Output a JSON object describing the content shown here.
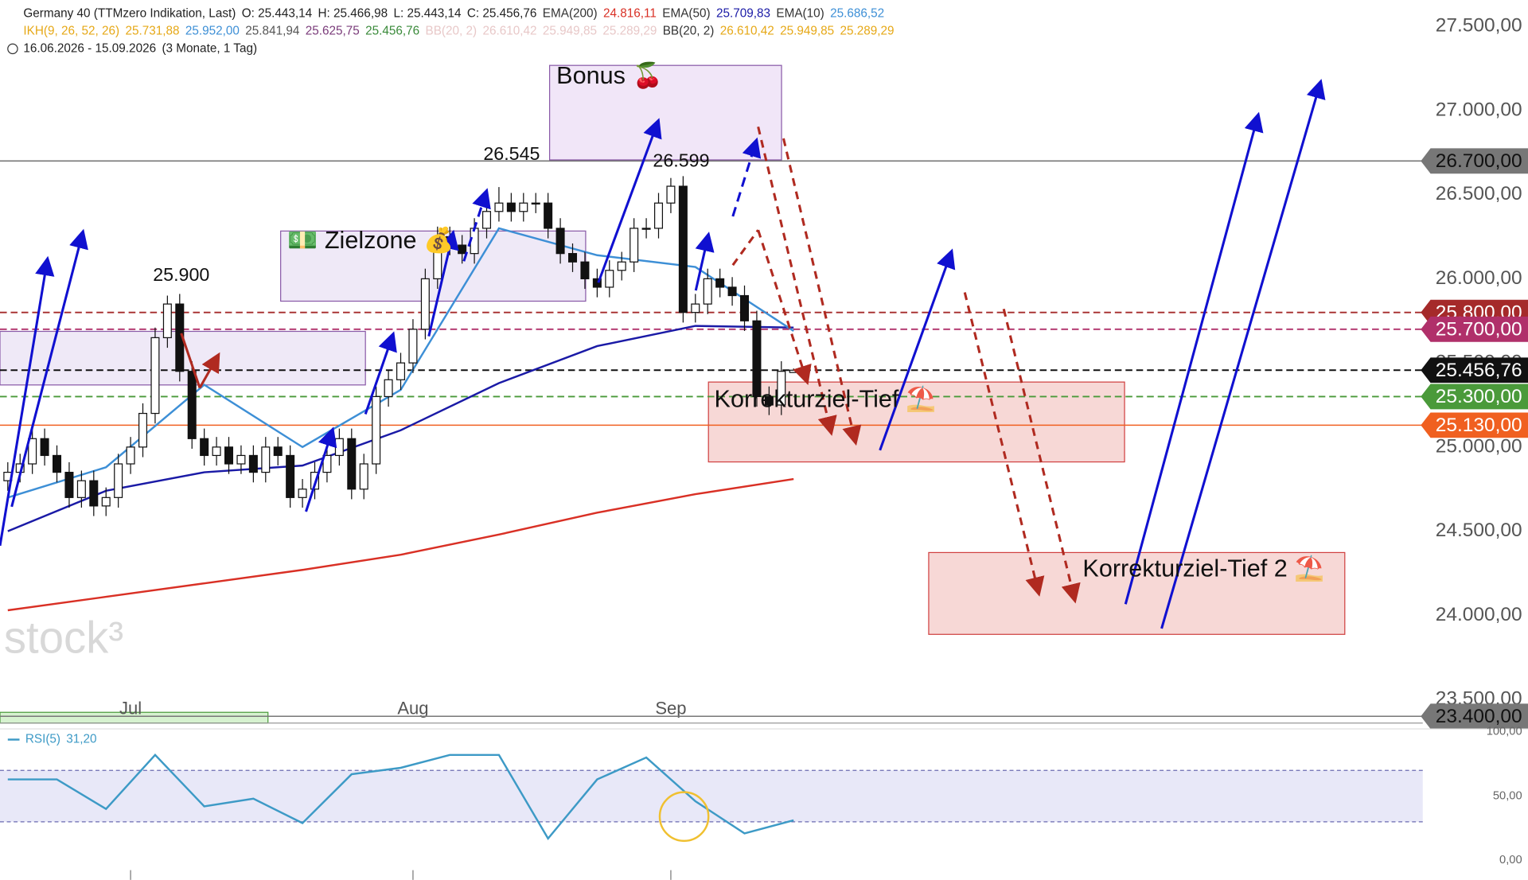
{
  "chart_data": {
    "type": "candlestick",
    "header": [
      [
        {
          "text": "Germany 40 (TTMzero Indikation, Last)",
          "color": "#222"
        },
        {
          "text": "O: 25.443,14",
          "color": "#222"
        },
        {
          "text": "H: 25.466,98",
          "color": "#222"
        },
        {
          "text": "L: 25.443,14",
          "color": "#222"
        },
        {
          "text": "C: 25.456,76",
          "color": "#222"
        },
        {
          "text": "EMA(200)",
          "color": "#333"
        },
        {
          "text": "24.816,11",
          "color": "#d93025"
        },
        {
          "text": "EMA(50)",
          "color": "#333"
        },
        {
          "text": "25.709,83",
          "color": "#1a1aa6"
        },
        {
          "text": "EMA(10)",
          "color": "#333"
        },
        {
          "text": "25.686,52",
          "color": "#3d8fd6"
        }
      ],
      [
        {
          "text": "IKH(9, 26, 52, 26)",
          "color": "#e6a817"
        },
        {
          "text": "25.731,88",
          "color": "#e6a817"
        },
        {
          "text": "25.952,00",
          "color": "#3d8fd6"
        },
        {
          "text": "25.841,94",
          "color": "#555"
        },
        {
          "text": "25.625,75",
          "color": "#7a3b7a"
        },
        {
          "text": "25.456,76",
          "color": "#3a8a3a"
        },
        {
          "text": "BB(20, 2)",
          "color": "#e8c8c8"
        },
        {
          "text": "26.610,42",
          "color": "#e8c8c8"
        },
        {
          "text": "25.949,85",
          "color": "#e8c8c8"
        },
        {
          "text": "25.289,29",
          "color": "#e8c8c8"
        },
        {
          "text": "BB(20, 2)",
          "color": "#333"
        },
        {
          "text": "26.610,42",
          "color": "#e6a817"
        },
        {
          "text": "25.949,85",
          "color": "#e6a817"
        },
        {
          "text": "25.289,29",
          "color": "#e6a817"
        }
      ],
      [
        {
          "text": "16.06.2026 - 15.09.2026",
          "color": "#222"
        },
        {
          "text": "(3 Monate, 1 Tag)",
          "color": "#222"
        }
      ]
    ],
    "annotations": [
      "Bonus 🍒",
      "💵 Zielzone 💰",
      "Korrekturziel-Tief ⛱️",
      "Korrekturziel-Tief 2 ⛱️",
      "25.900",
      "26.545",
      "26.599",
      "stock³"
    ],
    "categories": [
      null,
      null,
      null,
      null,
      null,
      null,
      null,
      null,
      null,
      null,
      "Jul",
      null,
      null,
      null,
      null,
      null,
      null,
      null,
      null,
      null,
      null,
      null,
      null,
      null,
      null,
      null,
      null,
      null,
      null,
      null,
      null,
      null,
      null,
      "Aug",
      null,
      null,
      null,
      null,
      null,
      null,
      null,
      null,
      null,
      null,
      null,
      null,
      null,
      null,
      null,
      null,
      null,
      null,
      null,
      null,
      "Sep",
      null,
      null,
      null,
      null,
      null,
      null,
      null,
      null,
      null,
      null
    ],
    "open": [
      24800,
      24850,
      24900,
      25050,
      24950,
      24850,
      24700,
      24800,
      24650,
      24700,
      24900,
      25000,
      25200,
      25650,
      25850,
      25450,
      25050,
      24950,
      25000,
      24900,
      24950,
      24850,
      25000,
      24950,
      24700,
      24750,
      24850,
      24950,
      25050,
      24750,
      24900,
      25300,
      25400,
      25500,
      25700,
      26000,
      26250,
      26200,
      26150,
      26300,
      26400,
      26450,
      26400,
      26450,
      26450,
      26300,
      26150,
      26100,
      26000,
      25950,
      26050,
      26100,
      26300,
      26300,
      26450,
      26550,
      25800,
      25850,
      26000,
      25950,
      25900,
      25750,
      25300,
      25250,
      25443.14
    ],
    "high": [
      24910,
      24960,
      25110,
      25110,
      25010,
      24910,
      24860,
      24860,
      24760,
      24960,
      25060,
      25260,
      25710,
      25900,
      25910,
      25510,
      25110,
      25060,
      25060,
      25010,
      25010,
      25060,
      25060,
      25010,
      24810,
      24910,
      25010,
      25110,
      25110,
      24960,
      25360,
      25460,
      25560,
      25760,
      26060,
      26310,
      26310,
      26260,
      26360,
      26460,
      26545,
      26510,
      26510,
      26510,
      26510,
      26360,
      26210,
      26160,
      26060,
      26110,
      26160,
      26360,
      26360,
      26510,
      26599,
      26610,
      25910,
      26060,
      26060,
      26010,
      25960,
      25810,
      25360,
      25510,
      25466.98
    ],
    "low": [
      24740,
      24790,
      24840,
      24890,
      24790,
      24640,
      24640,
      24590,
      24590,
      24640,
      24840,
      24940,
      25140,
      25590,
      25390,
      24990,
      24890,
      24890,
      24840,
      24840,
      24790,
      24790,
      24890,
      24640,
      24640,
      24690,
      24790,
      24890,
      24690,
      24690,
      24840,
      25240,
      25340,
      25440,
      25640,
      25940,
      26140,
      26090,
      26090,
      26240,
      26340,
      26340,
      26340,
      26390,
      26240,
      26090,
      26040,
      25940,
      25890,
      25890,
      25990,
      26040,
      26240,
      26240,
      26390,
      25740,
      25740,
      25790,
      25890,
      25840,
      25690,
      25240,
      25190,
      25190,
      25443.14
    ],
    "close": [
      24850,
      24900,
      25050,
      24950,
      24850,
      24700,
      24800,
      24650,
      24700,
      24900,
      25000,
      25200,
      25650,
      25850,
      25450,
      25050,
      24950,
      25000,
      24900,
      24950,
      24850,
      25000,
      24950,
      24700,
      24750,
      24850,
      24950,
      25050,
      24750,
      24900,
      25300,
      25400,
      25500,
      25700,
      26000,
      26250,
      26200,
      26150,
      26300,
      26400,
      26450,
      26400,
      26450,
      26450,
      26300,
      26150,
      26100,
      26000,
      25950,
      26050,
      26100,
      26300,
      26300,
      26450,
      26550,
      25800,
      25850,
      26000,
      25950,
      25900,
      25750,
      25300,
      25250,
      25450,
      25456.76
    ],
    "series": [
      {
        "name": "EMA(200)",
        "color": "#d93025",
        "x": [
          0,
          8,
          16,
          24,
          32,
          40,
          48,
          56,
          64
        ],
        "values": [
          24030,
          24110,
          24190,
          24270,
          24360,
          24480,
          24610,
          24720,
          24810
        ]
      },
      {
        "name": "EMA(50)",
        "color": "#1a1aa6",
        "x": [
          0,
          8,
          16,
          24,
          32,
          40,
          48,
          56,
          64
        ],
        "values": [
          24500,
          24740,
          24850,
          24890,
          25100,
          25380,
          25600,
          25720,
          25710
        ]
      },
      {
        "name": "EMA(10)",
        "color": "#3d8fd6",
        "x": [
          0,
          8,
          16,
          24,
          32,
          40,
          48,
          56,
          64
        ],
        "values": [
          24700,
          24880,
          25370,
          25000,
          25340,
          26300,
          26140,
          26070,
          25690
        ]
      }
    ],
    "ylim": [
      23360,
      27656
    ],
    "yticks": [
      {
        "value": 23500,
        "label": "23.500,00"
      },
      {
        "value": 24000,
        "label": "24.000,00"
      },
      {
        "value": 24500,
        "label": "24.500,00"
      },
      {
        "value": 25000,
        "label": "25.000,00"
      },
      {
        "value": 25500,
        "label": "25.500,00"
      },
      {
        "value": 26000,
        "label": "26.000,00"
      },
      {
        "value": 26500,
        "label": "26.500,00"
      },
      {
        "value": 27000,
        "label": "27.000,00"
      },
      {
        "value": 27500,
        "label": "27.500,00"
      }
    ],
    "levels": [
      {
        "value": 26700,
        "label": "26.700,00",
        "color": "#777",
        "text_color": "#111",
        "dashed": false
      },
      {
        "value": 25800,
        "label": "25.800,00",
        "color": "#a52a2a",
        "text_color": "#fff",
        "dashed": true
      },
      {
        "value": 25700,
        "label": "25.700,00",
        "color": "#b0306a",
        "text_color": "#fff",
        "dashed": true
      },
      {
        "value": 25456.76,
        "label": "25.456,76",
        "color": "#111",
        "text_color": "#fff",
        "dashed": true
      },
      {
        "value": 25300,
        "label": "25.300,00",
        "color": "#4a9a3a",
        "text_color": "#fff",
        "dashed": true
      },
      {
        "value": 25130,
        "label": "25.130,00",
        "color": "#f06020",
        "text_color": "#fff",
        "dashed": false
      },
      {
        "value": 23400,
        "label": "23.400,00",
        "color": "#777",
        "text_color": "#111",
        "dashed": false
      }
    ],
    "rsi": {
      "name": "RSI(5)",
      "value_label": "31,20",
      "color": "#3d9ac6",
      "x": [
        0,
        4,
        8,
        12,
        16,
        20,
        24,
        28,
        32,
        36,
        40,
        44,
        48,
        52,
        56,
        60,
        64
      ],
      "values": [
        63,
        63,
        40,
        82,
        42,
        48,
        29,
        67,
        72,
        82,
        82,
        17,
        63,
        80,
        46,
        21,
        31.2
      ],
      "ylim": [
        0,
        100
      ],
      "bands": [
        30,
        70
      ],
      "yticks": [
        {
          "value": 0,
          "label": "0,00"
        },
        {
          "value": 50,
          "label": "50,00"
        },
        {
          "value": 100,
          "label": "100,00"
        }
      ]
    }
  }
}
